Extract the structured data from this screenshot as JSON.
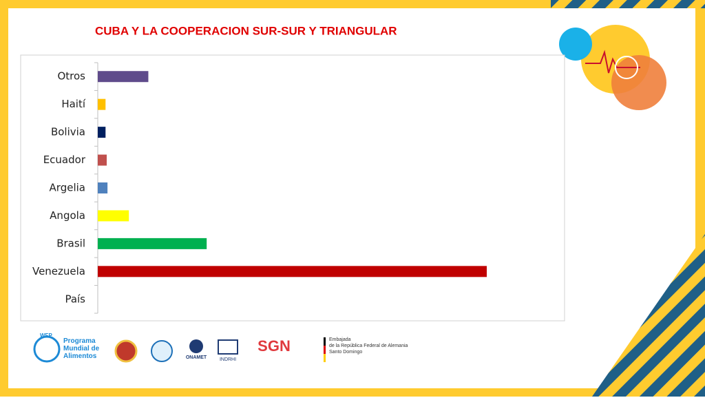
{
  "chart_data": {
    "type": "bar",
    "orientation": "horizontal",
    "title": "CUBA Y LA COOPERACION SUR-SUR Y TRIANGULAR",
    "categories": [
      "Otros",
      "Haití",
      "Bolivia",
      "Ecuador",
      "Argelia",
      "Angola",
      "Brasil",
      "Venezuela",
      "País"
    ],
    "values": [
      13,
      2,
      2,
      2.3,
      2.5,
      8,
      28,
      100,
      null
    ],
    "colors": [
      "#5f4b8b",
      "#ffc000",
      "#002060",
      "#c0504d",
      "#4f81bd",
      "#ffff00",
      "#00b050",
      "#c00000",
      "#000000"
    ],
    "xlim": [
      0,
      120
    ]
  },
  "footer": {
    "wfp": "WFP",
    "wfp_name": "Programa Mundial de Alimentos",
    "onamet": "ONAMET",
    "indrhi": "INDRHI",
    "sgn": "SGN",
    "embassy": [
      "Embajada",
      "de la República Federal de Alemania",
      "Santo Domingo"
    ]
  }
}
